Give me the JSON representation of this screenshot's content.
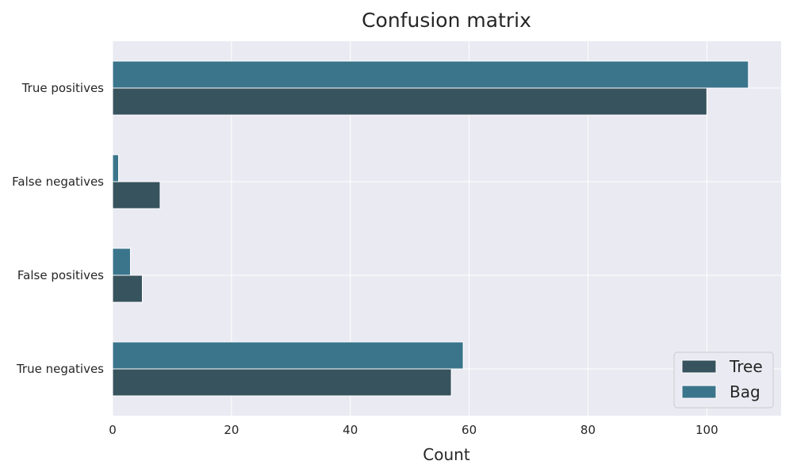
{
  "chart_data": {
    "type": "bar",
    "orientation": "horizontal",
    "title": "Confusion matrix",
    "xlabel": "Count",
    "ylabel": "",
    "categories": [
      "True positives",
      "False negatives",
      "False positives",
      "True negatives"
    ],
    "series": [
      {
        "name": "Tree",
        "values": [
          100,
          8,
          5,
          57
        ],
        "color": "#37535e"
      },
      {
        "name": "Bag",
        "values": [
          107,
          1,
          3,
          59
        ],
        "color": "#3b758c"
      }
    ],
    "xlim": [
      0,
      112.5
    ],
    "xticks": [
      0,
      20,
      40,
      60,
      80,
      100
    ],
    "grid": true,
    "legend_position": "lower-right",
    "background_color": "#eaeaf2",
    "grid_color": "#ffffff"
  }
}
